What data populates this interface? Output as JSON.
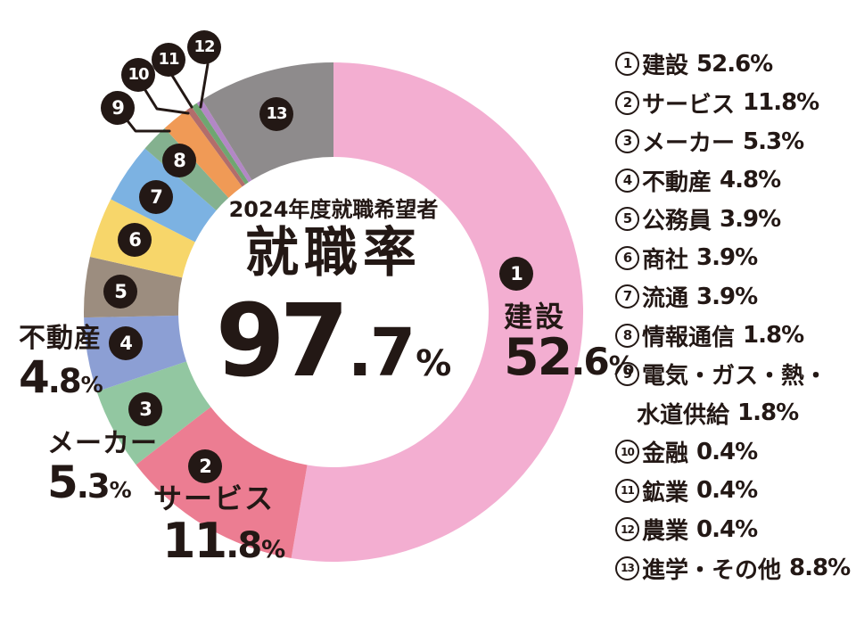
{
  "app": {
    "background": "#ffffff",
    "ink_color": "#231815"
  },
  "chart_data": {
    "type": "pie",
    "subtype": "donut",
    "title": "2024年度就職希望者 就職率",
    "center_value": "97.7%",
    "start_angle": "top",
    "direction": "clockwise",
    "legend_position": "right",
    "segments": [
      {
        "num": "1",
        "label": "建設",
        "value": 52.6,
        "color": "#f3aed1"
      },
      {
        "num": "2",
        "label": "サービス",
        "value": 11.8,
        "color": "#ec7d92"
      },
      {
        "num": "3",
        "label": "メーカー",
        "value": 5.3,
        "color": "#92c7a1"
      },
      {
        "num": "4",
        "label": "不動産",
        "value": 4.8,
        "color": "#8c9fd4"
      },
      {
        "num": "5",
        "label": "公務員",
        "value": 3.9,
        "color": "#9c8d7f"
      },
      {
        "num": "6",
        "label": "商社",
        "value": 3.9,
        "color": "#f7d66a"
      },
      {
        "num": "7",
        "label": "流通",
        "value": 3.9,
        "color": "#7cb2e2"
      },
      {
        "num": "8",
        "label": "情報通信",
        "value": 1.8,
        "color": "#84b18f"
      },
      {
        "num": "9",
        "label": "電気・ガス・熱・水道供給",
        "value": 1.8,
        "color": "#f09a56"
      },
      {
        "num": "10",
        "label": "金融",
        "value": 0.4,
        "color": "#b26d6b"
      },
      {
        "num": "11",
        "label": "鉱業",
        "value": 0.4,
        "color": "#6fa671"
      },
      {
        "num": "12",
        "label": "農業",
        "value": 0.4,
        "color": "#b287c5"
      },
      {
        "num": "13",
        "label": "進学・その他",
        "value": 8.8,
        "color": "#8e8b8c"
      }
    ]
  },
  "center": {
    "subtitle": "2024年度就職希望者",
    "title": "就職率",
    "value_int": "97",
    "value_dec": ".7",
    "value_unit": "%"
  },
  "callouts": [
    {
      "label": "建設",
      "value_int": "52",
      "value_dec": ".6",
      "unit": "%"
    },
    {
      "label": "サービス",
      "value_int": "11",
      "value_dec": ".8",
      "unit": "%"
    },
    {
      "label": "メーカー",
      "value_int": "5",
      "value_dec": ".3",
      "unit": "%"
    },
    {
      "label": "不動産",
      "value_int": "4",
      "value_dec": ".8",
      "unit": "%"
    }
  ],
  "legend": {
    "items": [
      {
        "num": "1",
        "label": "建設",
        "value": "52.6%"
      },
      {
        "num": "2",
        "label": "サービス",
        "value": "11.8%"
      },
      {
        "num": "3",
        "label": "メーカー",
        "value": "5.3%"
      },
      {
        "num": "4",
        "label": "不動産",
        "value": "4.8%"
      },
      {
        "num": "5",
        "label": "公務員",
        "value": "3.9%"
      },
      {
        "num": "6",
        "label": "商社",
        "value": "3.9%"
      },
      {
        "num": "7",
        "label": "流通",
        "value": "3.9%"
      },
      {
        "num": "8",
        "label": "情報通信",
        "value": "1.8%"
      },
      {
        "num": "9",
        "label": "電気・ガス・熱・",
        "label_line2": "水道供給",
        "value": "1.8%"
      },
      {
        "num": "10",
        "label": "金融",
        "value": "0.4%"
      },
      {
        "num": "11",
        "label": "鉱業",
        "value": "0.4%"
      },
      {
        "num": "12",
        "label": "農業",
        "value": "0.4%"
      },
      {
        "num": "13",
        "label": "進学・その他",
        "value": "8.8%"
      }
    ]
  }
}
